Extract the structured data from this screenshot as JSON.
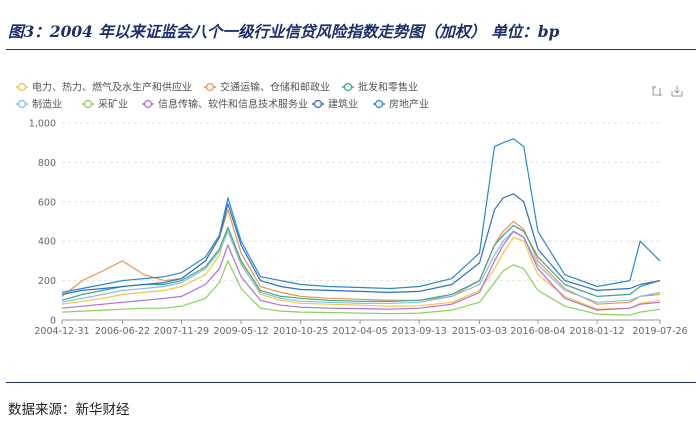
{
  "header": {
    "title": "图3：2004 年以来证监会八个一级行业信贷风险指数走势图（加权）  单位：bp"
  },
  "footer": {
    "source": "数据来源：新华财经"
  },
  "toolbox": {
    "icons": [
      "restore-icon",
      "save-image-icon"
    ]
  },
  "chart_data": {
    "type": "line",
    "title": "",
    "xlabel": "",
    "ylabel": "",
    "x_tick_labels": [
      "2004-12-31",
      "2006-06-22",
      "2007-11-29",
      "2009-05-12",
      "2010-10-25",
      "2012-04-05",
      "2013-09-13",
      "2015-03-03",
      "2016-08-04",
      "2018-01-12",
      "2019-07-26"
    ],
    "y_tick_labels": [
      "0",
      "200",
      "400",
      "600",
      "800",
      "1,000"
    ],
    "ylim": [
      0,
      1000
    ],
    "grid": "horizontal dashed",
    "legend_position": "top-left",
    "x": [
      "2004-12-31",
      "2005-06-30",
      "2005-12-31",
      "2006-06-22",
      "2006-12-31",
      "2007-06-30",
      "2007-11-29",
      "2008-06-30",
      "2008-10-31",
      "2009-01-15",
      "2009-05-12",
      "2009-10-31",
      "2010-04-30",
      "2010-10-25",
      "2011-06-30",
      "2012-04-05",
      "2012-12-31",
      "2013-09-13",
      "2014-06-30",
      "2015-03-03",
      "2015-07-15",
      "2015-09-30",
      "2015-12-31",
      "2016-03-31",
      "2016-08-04",
      "2017-03-31",
      "2018-01-12",
      "2018-10-31",
      "2019-01-31",
      "2019-07-26"
    ],
    "series": [
      {
        "name": "电力、热力、燃气及水生产和供应业",
        "color": "#f5c542",
        "values": [
          80,
          95,
          110,
          130,
          140,
          150,
          170,
          230,
          330,
          470,
          290,
          130,
          100,
          85,
          80,
          75,
          70,
          72,
          90,
          150,
          260,
          340,
          420,
          400,
          230,
          120,
          55,
          60,
          85,
          100
        ]
      },
      {
        "name": "交通运输、仓储和邮政业",
        "color": "#e8964f",
        "values": [
          120,
          200,
          250,
          300,
          230,
          200,
          210,
          300,
          420,
          560,
          340,
          170,
          140,
          120,
          110,
          105,
          100,
          100,
          120,
          200,
          380,
          450,
          500,
          460,
          300,
          160,
          80,
          90,
          120,
          130
        ]
      },
      {
        "name": "批发和零售业",
        "color": "#3fa87f",
        "values": [
          100,
          130,
          150,
          170,
          180,
          180,
          200,
          270,
          360,
          470,
          300,
          150,
          120,
          110,
          100,
          95,
          95,
          100,
          130,
          200,
          380,
          430,
          480,
          450,
          320,
          180,
          120,
          130,
          170,
          200
        ]
      },
      {
        "name": "制造业",
        "color": "#84bfe8",
        "values": [
          90,
          110,
          130,
          150,
          160,
          170,
          190,
          260,
          350,
          450,
          280,
          140,
          110,
          95,
          90,
          85,
          85,
          90,
          120,
          180,
          330,
          400,
          450,
          420,
          280,
          150,
          90,
          100,
          120,
          140
        ]
      },
      {
        "name": "采矿业",
        "color": "#8bd15a",
        "values": [
          40,
          45,
          50,
          55,
          60,
          60,
          70,
          110,
          190,
          300,
          160,
          60,
          45,
          40,
          38,
          35,
          32,
          35,
          50,
          90,
          190,
          250,
          280,
          260,
          150,
          70,
          30,
          25,
          40,
          55
        ]
      },
      {
        "name": "信息传输、软件和信息技术服务业",
        "color": "#b16fd6",
        "values": [
          60,
          70,
          80,
          90,
          100,
          110,
          120,
          180,
          260,
          380,
          220,
          100,
          75,
          65,
          60,
          58,
          55,
          60,
          80,
          140,
          300,
          380,
          450,
          420,
          260,
          110,
          50,
          60,
          80,
          90
        ]
      },
      {
        "name": "建筑业",
        "color": "#2f6ec6",
        "values": [
          130,
          150,
          160,
          170,
          180,
          190,
          210,
          300,
          420,
          590,
          380,
          200,
          170,
          155,
          150,
          145,
          140,
          145,
          180,
          290,
          560,
          620,
          640,
          600,
          360,
          200,
          150,
          160,
          180,
          200
        ]
      },
      {
        "name": "房地产业",
        "color": "#2a8ac9",
        "values": [
          140,
          160,
          180,
          200,
          210,
          220,
          240,
          320,
          430,
          620,
          400,
          220,
          200,
          180,
          170,
          165,
          160,
          170,
          210,
          340,
          880,
          900,
          920,
          880,
          450,
          230,
          170,
          200,
          400,
          300
        ]
      }
    ]
  }
}
